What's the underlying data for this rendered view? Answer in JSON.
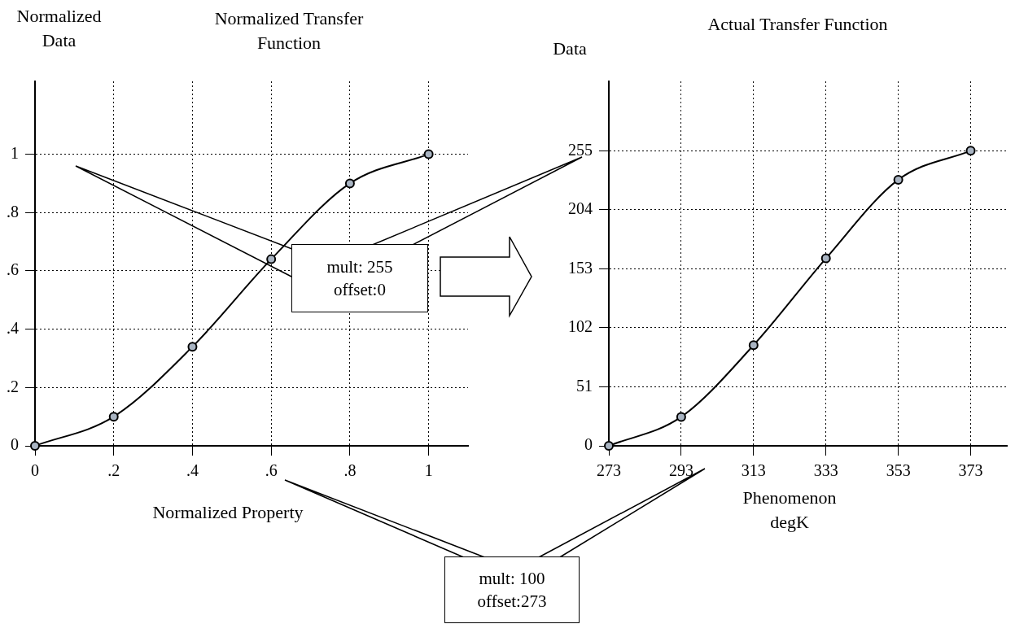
{
  "chart_data": [
    {
      "type": "line",
      "title": "Normalized Transfer Function",
      "xlabel": "Normalized Property",
      "ylabel": "Normalized Data",
      "x": [
        0,
        0.2,
        0.4,
        0.6,
        0.8,
        1
      ],
      "series": [
        {
          "color": "#000000",
          "values": [
            0,
            0.1,
            0.34,
            0.64,
            0.9,
            1
          ]
        }
      ],
      "xlim": [
        0,
        1.1
      ],
      "xticks": [
        0,
        {
          "value": 0.2,
          "label": ".2"
        },
        {
          "value": 0.4,
          "label": ".4"
        },
        {
          "value": 0.6,
          "label": ".6"
        },
        {
          "value": 0.8,
          "label": ".8"
        },
        1
      ],
      "ylim": [
        0,
        1.25
      ],
      "yticks": [
        0,
        {
          "value": 0.2,
          "label": ".2"
        },
        {
          "value": 0.4,
          "label": ".4"
        },
        {
          "value": 0.6,
          "label": ".6"
        },
        {
          "value": 0.8,
          "label": ".8"
        },
        1
      ],
      "grid": true,
      "legend": false,
      "marker": "circle",
      "annotations": [
        "mult: 255 offset:0"
      ]
    },
    {
      "type": "line",
      "title": "Actual Transfer Function",
      "xlabel": "Phenomenon degK",
      "ylabel": "Data",
      "x": [
        273,
        293,
        313,
        333,
        353,
        373
      ],
      "series": [
        {
          "color": "#000000",
          "values": [
            0,
            25,
            87,
            162,
            230,
            255
          ]
        }
      ],
      "xlim": [
        273,
        383
      ],
      "xticks": [
        273,
        293,
        313,
        333,
        353,
        373
      ],
      "ylim": [
        0,
        315
      ],
      "yticks": [
        0,
        51,
        102,
        153,
        204,
        255
      ],
      "grid": true,
      "legend": false,
      "marker": "circle",
      "annotations": [
        "mult: 100 offset:273"
      ]
    }
  ]
}
